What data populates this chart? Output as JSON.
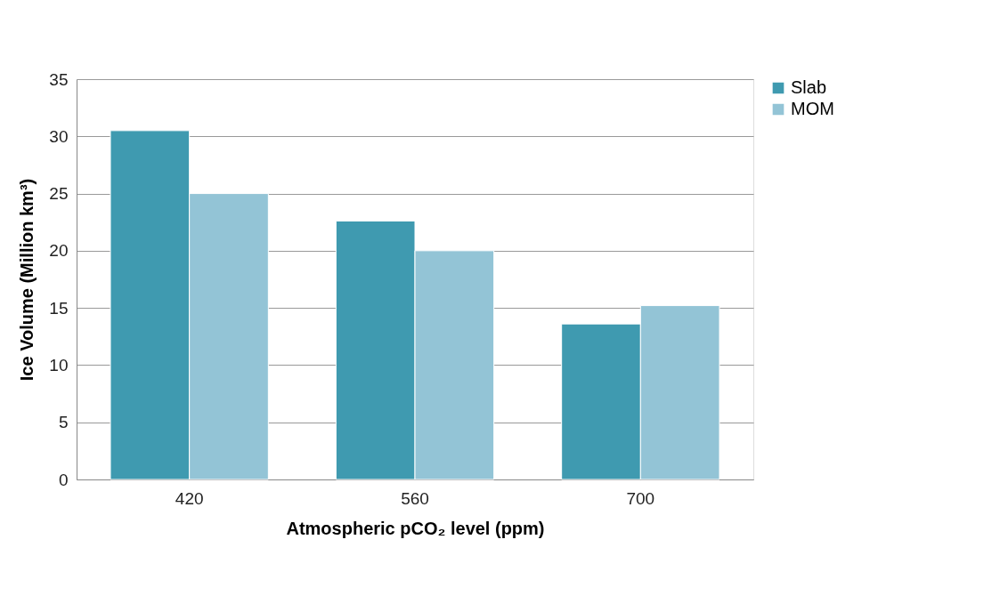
{
  "chart_data": {
    "type": "bar",
    "xlabel": "Atmospheric pCO₂ level (ppm)",
    "ylabel": "Ice Volume (Million km³)",
    "categories": [
      "420",
      "560",
      "700"
    ],
    "series": [
      {
        "name": "Slab",
        "color": "#3f9ab0",
        "values": [
          30.5,
          22.6,
          13.6
        ]
      },
      {
        "name": "MOM",
        "color": "#93c4d6",
        "values": [
          25.0,
          20.0,
          15.2
        ]
      }
    ],
    "ylim": [
      0,
      35
    ],
    "yticks": [
      0,
      5,
      10,
      15,
      20,
      25,
      30,
      35
    ],
    "grid": "y",
    "legend": "right"
  }
}
